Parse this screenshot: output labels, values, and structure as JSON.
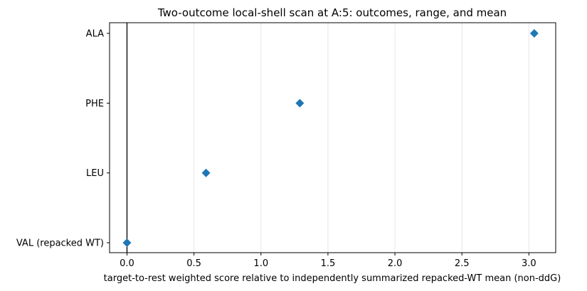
{
  "chart_data": {
    "type": "scatter",
    "title": "Two-outcome local-shell scan at A:5: outcomes, range, and mean",
    "xlabel": "target-to-rest weighted score relative to independently summarized repacked-WT mean (non-ddG)",
    "ylabel": "",
    "xlim": [
      -0.13,
      3.2
    ],
    "x_ticks": [
      0,
      0.5,
      1,
      1.5,
      2,
      2.5,
      3
    ],
    "x_tick_labels": [
      "0.0",
      "0.5",
      "1.0",
      "1.5",
      "2.0",
      "2.5",
      "3.0"
    ],
    "categories": [
      "ALA",
      "PHE",
      "LEU",
      "VAL (repacked WT)"
    ],
    "values": [
      3.04,
      1.29,
      0.59,
      0.0
    ],
    "reference_line_x": 0,
    "marker": "diamond",
    "marker_color": "#1f77b4",
    "grid": "vertical, light gray",
    "legend": "none"
  }
}
